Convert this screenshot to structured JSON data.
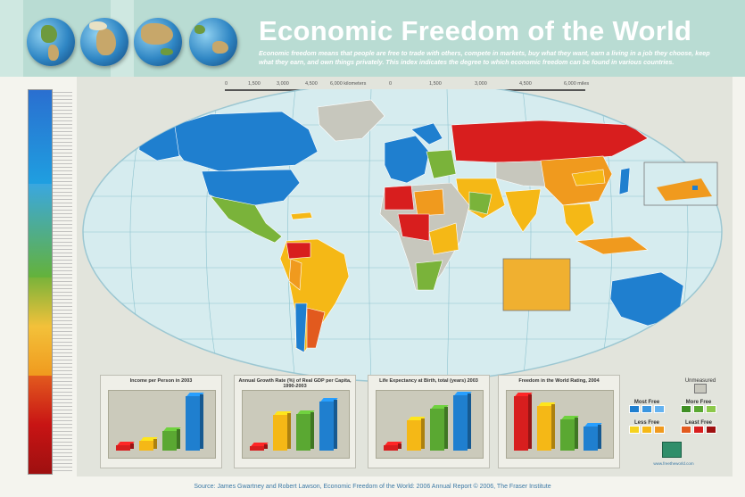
{
  "header": {
    "title": "Economic Freedom of the World",
    "subtitle": "Economic freedom means that people are free to trade with others, compete in markets, buy what they want, earn a living in a job they choose, keep what they earn, and own things privately. This index indicates the degree to which economic freedom can be found in various countries."
  },
  "scale": {
    "km_ticks": [
      "0",
      "1,500",
      "3,000",
      "4,500",
      "6,000 kilometers"
    ],
    "mi_ticks": [
      "0",
      "1,500",
      "3,000",
      "4,500",
      "6,000 miles"
    ]
  },
  "colors": {
    "most_free": "#1f7fcf",
    "more_free": "#5aa832",
    "less_free": "#f5b816",
    "least_free": "#d81e1e",
    "unmeasured": "#c7c7bd",
    "ocean": "#d6ecef",
    "header_band": "#b9dcd3"
  },
  "key": {
    "unmeasured": "Unmeasured",
    "most_free": "Most Free",
    "more_free": "More Free",
    "less_free": "Less Free",
    "least_free": "Least Free"
  },
  "charts": [
    {
      "title": "Income per Person in 2003",
      "bars": [
        {
          "color": "#d81e1e",
          "value": 0.1
        },
        {
          "color": "#f5b816",
          "value": 0.18
        },
        {
          "color": "#5aa832",
          "value": 0.35
        },
        {
          "color": "#1f7fcf",
          "value": 0.98
        }
      ]
    },
    {
      "title": "Annual Growth Rate (%) of Real GDP per Capita, 1990-2003",
      "bars": [
        {
          "color": "#d81e1e",
          "value": 0.08
        },
        {
          "color": "#f5b816",
          "value": 0.65
        },
        {
          "color": "#5aa832",
          "value": 0.66
        },
        {
          "color": "#1f7fcf",
          "value": 0.88
        }
      ]
    },
    {
      "title": "Life Expectancy at Birth, total (years) 2003",
      "bars": [
        {
          "color": "#d81e1e",
          "value": 0.1
        },
        {
          "color": "#f5b816",
          "value": 0.55
        },
        {
          "color": "#5aa832",
          "value": 0.75
        },
        {
          "color": "#1f7fcf",
          "value": 1.0
        }
      ]
    },
    {
      "title": "Freedom in the World Rating, 2004",
      "bars": [
        {
          "color": "#d81e1e",
          "value": 0.98
        },
        {
          "color": "#f5b816",
          "value": 0.8
        },
        {
          "color": "#5aa832",
          "value": 0.56
        },
        {
          "color": "#1f7fcf",
          "value": 0.43
        }
      ]
    }
  ],
  "footer": {
    "source": "Source: James Gwartney and Robert Lawson, Economic Freedom of the World: 2006 Annual Report © 2006, The Fraser Institute",
    "website": "www.freetheworld.com"
  }
}
